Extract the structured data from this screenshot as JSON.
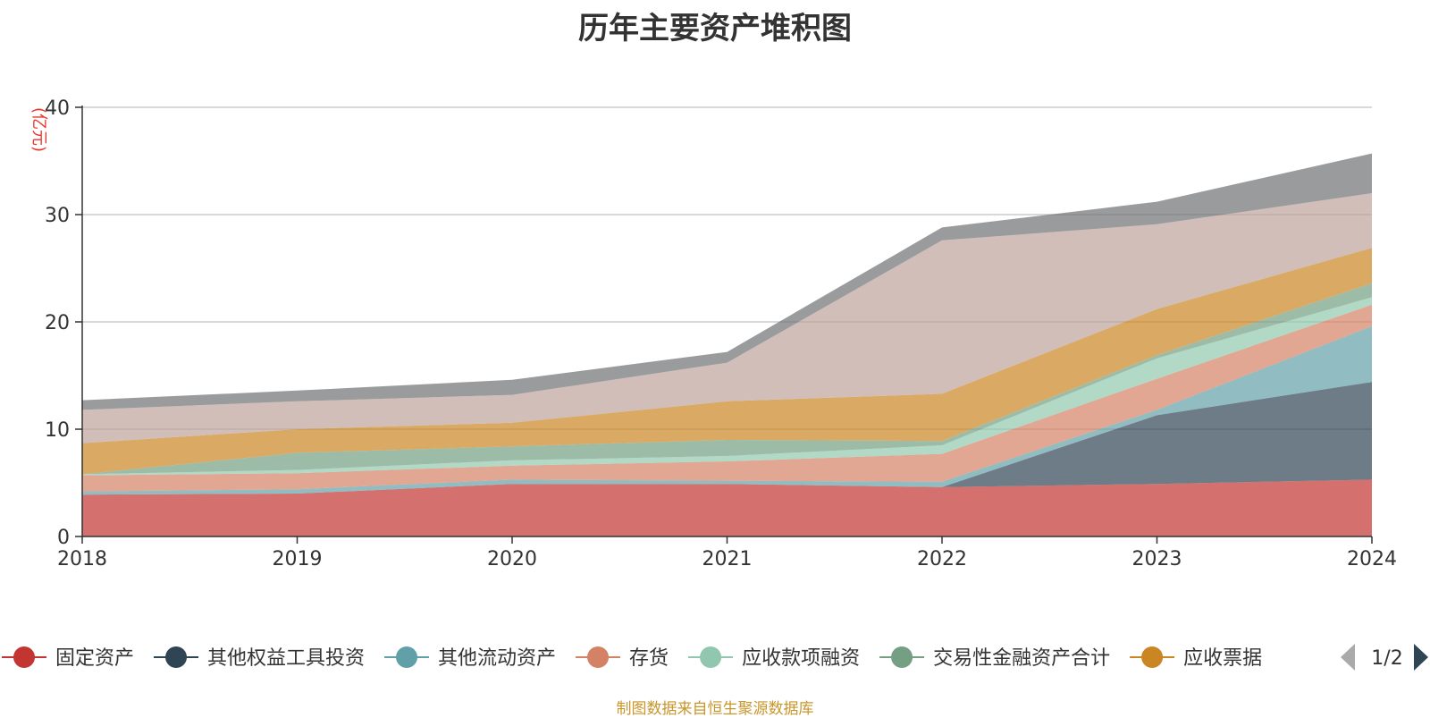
{
  "chart_data": {
    "type": "area",
    "stacked": true,
    "title": "历年主要资产堆积图",
    "unit_label": "(亿元)",
    "x": [
      "2018",
      "2019",
      "2020",
      "2021",
      "2022",
      "2023",
      "2024"
    ],
    "ylim": [
      0,
      40
    ],
    "yticks": [
      0,
      10,
      20,
      30,
      40
    ],
    "grid": true,
    "series": [
      {
        "name": "固定资产",
        "color": "#c23531",
        "legend": true,
        "values": [
          3.9,
          4.0,
          4.9,
          4.9,
          4.6,
          4.9,
          5.3
        ]
      },
      {
        "name": "其他权益工具投资",
        "color": "#2f4554",
        "legend": true,
        "values": [
          0,
          0,
          0,
          0,
          0,
          6.4,
          9.1
        ]
      },
      {
        "name": "其他流动资产",
        "color": "#61a0a8",
        "legend": true,
        "values": [
          0.3,
          0.4,
          0.4,
          0.3,
          0.5,
          0.5,
          5.2
        ]
      },
      {
        "name": "存货",
        "color": "#d48265",
        "legend": true,
        "values": [
          1.5,
          1.5,
          1.3,
          1.8,
          2.6,
          2.9,
          2.0
        ]
      },
      {
        "name": "应收款项融资",
        "color": "#91c7ae",
        "legend": true,
        "values": [
          0.1,
          0.3,
          0.5,
          0.5,
          0.8,
          1.9,
          0.7
        ]
      },
      {
        "name": "交易性金融资产合计",
        "color": "#749f83",
        "legend": true,
        "values": [
          0,
          1.6,
          1.3,
          1.5,
          0.4,
          0.3,
          1.3
        ]
      },
      {
        "name": "应收票据",
        "color": "#ca8622",
        "legend": true,
        "values": [
          2.9,
          2.2,
          2.2,
          3.6,
          4.4,
          4.3,
          3.3
        ]
      },
      {
        "name": "",
        "color": "#bda29a",
        "legend": false,
        "values": [
          3.1,
          2.6,
          2.6,
          3.6,
          14.3,
          7.9,
          5.1
        ]
      },
      {
        "name": "",
        "color": "#6e7074",
        "legend": false,
        "values": [
          0.9,
          1.0,
          1.4,
          1.0,
          1.2,
          2.1,
          3.7
        ]
      }
    ],
    "legend_position": "bottom",
    "legend_page": "1/2",
    "source_note": "制图数据来自恒生聚源数据库"
  }
}
